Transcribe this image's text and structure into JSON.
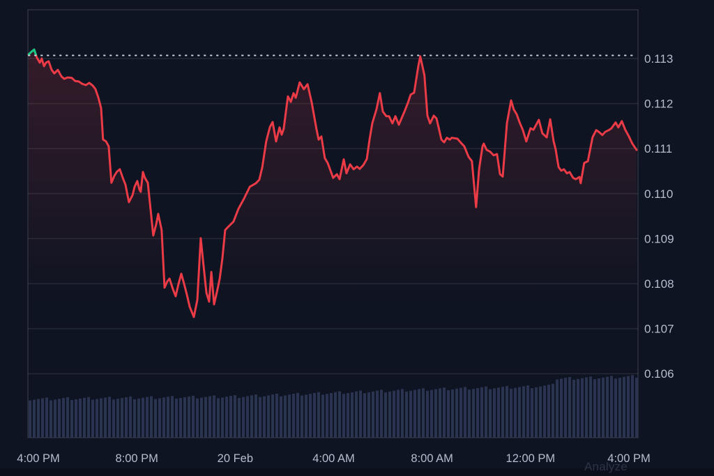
{
  "chart": {
    "analyze_label": "Analyze",
    "colors": {
      "background": "#0f1422",
      "footer_strip": "#0b0f1b",
      "line_down": "#ea3b47",
      "line_up": "#17c784",
      "area_fill": "#e93e4e",
      "volume_bar": "#2d3756",
      "gridline": "rgba(255,255,255,0.09)",
      "plot_border": "rgba(255,255,255,0.13)",
      "axis_text": "#b5bdce",
      "baseline_dotted": "#ccd2df",
      "analyze_text": "#2c3346"
    }
  },
  "chart_data": {
    "type": "line",
    "title": "",
    "xlabel": "",
    "ylabel": "",
    "legend": "none",
    "grid": "horizontal-only",
    "baseline_price": 0.11307,
    "y_gridline_spacing": 0.001,
    "y_ticks": [
      {
        "value": 0.113,
        "label": "0.113"
      },
      {
        "value": 0.112,
        "label": "0.112"
      },
      {
        "value": 0.111,
        "label": "0.111"
      },
      {
        "value": 0.11,
        "label": "0.110"
      },
      {
        "value": 0.109,
        "label": "0.109"
      },
      {
        "value": 0.108,
        "label": "0.108"
      },
      {
        "value": 0.107,
        "label": "0.107"
      },
      {
        "value": 0.106,
        "label": "0.106"
      }
    ],
    "x_ticks": [
      {
        "t": 0,
        "label": "4:00 PM"
      },
      {
        "t": 4,
        "label": "8:00 PM"
      },
      {
        "t": 8,
        "label": "20 Feb"
      },
      {
        "t": 12,
        "label": "4:00 AM"
      },
      {
        "t": 16,
        "label": "8:00 AM"
      },
      {
        "t": 20,
        "label": "12:00 PM"
      },
      {
        "t": 24,
        "label": "4:00 PM"
      }
    ],
    "t_range_hours": [
      -0.4,
      24.31
    ],
    "series": [
      {
        "name": "price",
        "points": [
          [
            -0.4,
            0.11309
          ],
          [
            -0.28,
            0.11315
          ],
          [
            -0.17,
            0.1132
          ],
          [
            -0.06,
            0.11302
          ],
          [
            0.06,
            0.11291
          ],
          [
            0.14,
            0.113
          ],
          [
            0.23,
            0.11283
          ],
          [
            0.31,
            0.11291
          ],
          [
            0.42,
            0.11294
          ],
          [
            0.54,
            0.11275
          ],
          [
            0.65,
            0.11267
          ],
          [
            0.79,
            0.11275
          ],
          [
            0.94,
            0.1126
          ],
          [
            1.05,
            0.11255
          ],
          [
            1.19,
            0.11258
          ],
          [
            1.36,
            0.11257
          ],
          [
            1.5,
            0.1125
          ],
          [
            1.64,
            0.11249
          ],
          [
            1.78,
            0.11244
          ],
          [
            1.93,
            0.11241
          ],
          [
            2.07,
            0.11246
          ],
          [
            2.21,
            0.1124
          ],
          [
            2.32,
            0.11232
          ],
          [
            2.44,
            0.11213
          ],
          [
            2.55,
            0.1119
          ],
          [
            2.63,
            0.1112
          ],
          [
            2.75,
            0.11116
          ],
          [
            2.86,
            0.11105
          ],
          [
            2.97,
            0.11024
          ],
          [
            3.09,
            0.1104
          ],
          [
            3.2,
            0.11049
          ],
          [
            3.31,
            0.11054
          ],
          [
            3.43,
            0.11035
          ],
          [
            3.54,
            0.1102
          ],
          [
            3.68,
            0.10981
          ],
          [
            3.83,
            0.10997
          ],
          [
            3.91,
            0.11015
          ],
          [
            4.02,
            0.11028
          ],
          [
            4.11,
            0.11009
          ],
          [
            4.16,
            0.11004
          ],
          [
            4.25,
            0.11048
          ],
          [
            4.33,
            0.11035
          ],
          [
            4.45,
            0.11024
          ],
          [
            4.56,
            0.10966
          ],
          [
            4.67,
            0.10907
          ],
          [
            4.79,
            0.10932
          ],
          [
            4.87,
            0.10955
          ],
          [
            5.01,
            0.10919
          ],
          [
            5.13,
            0.10791
          ],
          [
            5.24,
            0.10805
          ],
          [
            5.33,
            0.10811
          ],
          [
            5.47,
            0.10788
          ],
          [
            5.58,
            0.10772
          ],
          [
            5.69,
            0.10798
          ],
          [
            5.81,
            0.10822
          ],
          [
            5.89,
            0.10806
          ],
          [
            6.03,
            0.10777
          ],
          [
            6.15,
            0.10749
          ],
          [
            6.32,
            0.10726
          ],
          [
            6.46,
            0.10764
          ],
          [
            6.6,
            0.10901
          ],
          [
            6.71,
            0.10842
          ],
          [
            6.83,
            0.1078
          ],
          [
            6.94,
            0.1076
          ],
          [
            7.03,
            0.10826
          ],
          [
            7.14,
            0.10754
          ],
          [
            7.25,
            0.1078
          ],
          [
            7.37,
            0.10811
          ],
          [
            7.48,
            0.10857
          ],
          [
            7.59,
            0.10919
          ],
          [
            7.73,
            0.10927
          ],
          [
            7.93,
            0.10938
          ],
          [
            8.13,
            0.10966
          ],
          [
            8.36,
            0.10989
          ],
          [
            8.59,
            0.11015
          ],
          [
            8.84,
            0.11023
          ],
          [
            8.98,
            0.11031
          ],
          [
            9.1,
            0.11059
          ],
          [
            9.26,
            0.11116
          ],
          [
            9.41,
            0.11148
          ],
          [
            9.52,
            0.11159
          ],
          [
            9.66,
            0.11116
          ],
          [
            9.8,
            0.11147
          ],
          [
            9.89,
            0.11131
          ],
          [
            9.97,
            0.11144
          ],
          [
            10.14,
            0.11216
          ],
          [
            10.26,
            0.11204
          ],
          [
            10.37,
            0.11223
          ],
          [
            10.46,
            0.11213
          ],
          [
            10.62,
            0.11247
          ],
          [
            10.79,
            0.11232
          ],
          [
            10.94,
            0.11243
          ],
          [
            11.11,
            0.11202
          ],
          [
            11.3,
            0.11144
          ],
          [
            11.39,
            0.1112
          ],
          [
            11.5,
            0.11127
          ],
          [
            11.64,
            0.11079
          ],
          [
            11.76,
            0.11068
          ],
          [
            11.98,
            0.11035
          ],
          [
            12.13,
            0.11043
          ],
          [
            12.24,
            0.11032
          ],
          [
            12.41,
            0.11076
          ],
          [
            12.52,
            0.11045
          ],
          [
            12.67,
            0.11065
          ],
          [
            12.81,
            0.11054
          ],
          [
            12.95,
            0.1106
          ],
          [
            13.06,
            0.11055
          ],
          [
            13.2,
            0.11063
          ],
          [
            13.35,
            0.11077
          ],
          [
            13.46,
            0.1112
          ],
          [
            13.57,
            0.11156
          ],
          [
            13.74,
            0.11187
          ],
          [
            13.88,
            0.11223
          ],
          [
            14.0,
            0.11182
          ],
          [
            14.14,
            0.11172
          ],
          [
            14.25,
            0.11172
          ],
          [
            14.39,
            0.11156
          ],
          [
            14.51,
            0.11172
          ],
          [
            14.65,
            0.11153
          ],
          [
            14.76,
            0.11167
          ],
          [
            14.9,
            0.11185
          ],
          [
            15.02,
            0.11202
          ],
          [
            15.13,
            0.1122
          ],
          [
            15.27,
            0.11224
          ],
          [
            15.44,
            0.11283
          ],
          [
            15.52,
            0.11305
          ],
          [
            15.64,
            0.11275
          ],
          [
            15.69,
            0.11263
          ],
          [
            15.81,
            0.11173
          ],
          [
            15.92,
            0.11156
          ],
          [
            16.07,
            0.11173
          ],
          [
            16.18,
            0.11167
          ],
          [
            16.38,
            0.1112
          ],
          [
            16.49,
            0.11114
          ],
          [
            16.6,
            0.11124
          ],
          [
            16.72,
            0.1112
          ],
          [
            16.8,
            0.11124
          ],
          [
            17.03,
            0.11122
          ],
          [
            17.17,
            0.11113
          ],
          [
            17.31,
            0.11105
          ],
          [
            17.48,
            0.11082
          ],
          [
            17.62,
            0.11072
          ],
          [
            17.79,
            0.1097
          ],
          [
            17.91,
            0.11054
          ],
          [
            18.05,
            0.11105
          ],
          [
            18.1,
            0.11111
          ],
          [
            18.22,
            0.11097
          ],
          [
            18.36,
            0.11093
          ],
          [
            18.5,
            0.11085
          ],
          [
            18.64,
            0.11088
          ],
          [
            18.76,
            0.11043
          ],
          [
            18.87,
            0.11038
          ],
          [
            19.04,
            0.11156
          ],
          [
            19.21,
            0.11207
          ],
          [
            19.32,
            0.11187
          ],
          [
            19.44,
            0.11176
          ],
          [
            19.55,
            0.11159
          ],
          [
            19.69,
            0.11141
          ],
          [
            19.83,
            0.11116
          ],
          [
            20.0,
            0.11145
          ],
          [
            20.12,
            0.11142
          ],
          [
            20.34,
            0.11164
          ],
          [
            20.48,
            0.11134
          ],
          [
            20.66,
            0.11125
          ],
          [
            20.8,
            0.11165
          ],
          [
            20.94,
            0.11116
          ],
          [
            21.02,
            0.11099
          ],
          [
            21.14,
            0.11059
          ],
          [
            21.25,
            0.11051
          ],
          [
            21.36,
            0.11054
          ],
          [
            21.48,
            0.11045
          ],
          [
            21.59,
            0.11048
          ],
          [
            21.73,
            0.11035
          ],
          [
            21.84,
            0.11032
          ],
          [
            21.99,
            0.11037
          ],
          [
            22.04,
            0.11023
          ],
          [
            22.18,
            0.11068
          ],
          [
            22.33,
            0.11072
          ],
          [
            22.52,
            0.11125
          ],
          [
            22.67,
            0.11141
          ],
          [
            22.78,
            0.11137
          ],
          [
            22.92,
            0.1113
          ],
          [
            23.03,
            0.11137
          ],
          [
            23.18,
            0.11141
          ],
          [
            23.29,
            0.11145
          ],
          [
            23.46,
            0.11158
          ],
          [
            23.57,
            0.11147
          ],
          [
            23.71,
            0.11161
          ],
          [
            23.85,
            0.11142
          ],
          [
            24.0,
            0.11127
          ],
          [
            24.14,
            0.11111
          ],
          [
            24.31,
            0.11097
          ]
        ]
      }
    ],
    "volume": {
      "units": "relative 0-1",
      "profile": [
        [
          -0.4,
          0.63
        ],
        [
          0,
          0.63
        ],
        [
          2,
          0.64
        ],
        [
          4,
          0.65
        ],
        [
          6,
          0.66
        ],
        [
          8,
          0.67
        ],
        [
          10,
          0.7
        ],
        [
          12,
          0.73
        ],
        [
          14,
          0.76
        ],
        [
          16,
          0.79
        ],
        [
          17,
          0.8
        ],
        [
          18,
          0.81
        ],
        [
          19,
          0.82
        ],
        [
          20,
          0.83
        ],
        [
          20.7,
          0.84
        ],
        [
          21,
          0.96
        ],
        [
          22,
          0.97
        ],
        [
          23,
          0.98
        ],
        [
          24.31,
          1.0
        ]
      ]
    }
  }
}
